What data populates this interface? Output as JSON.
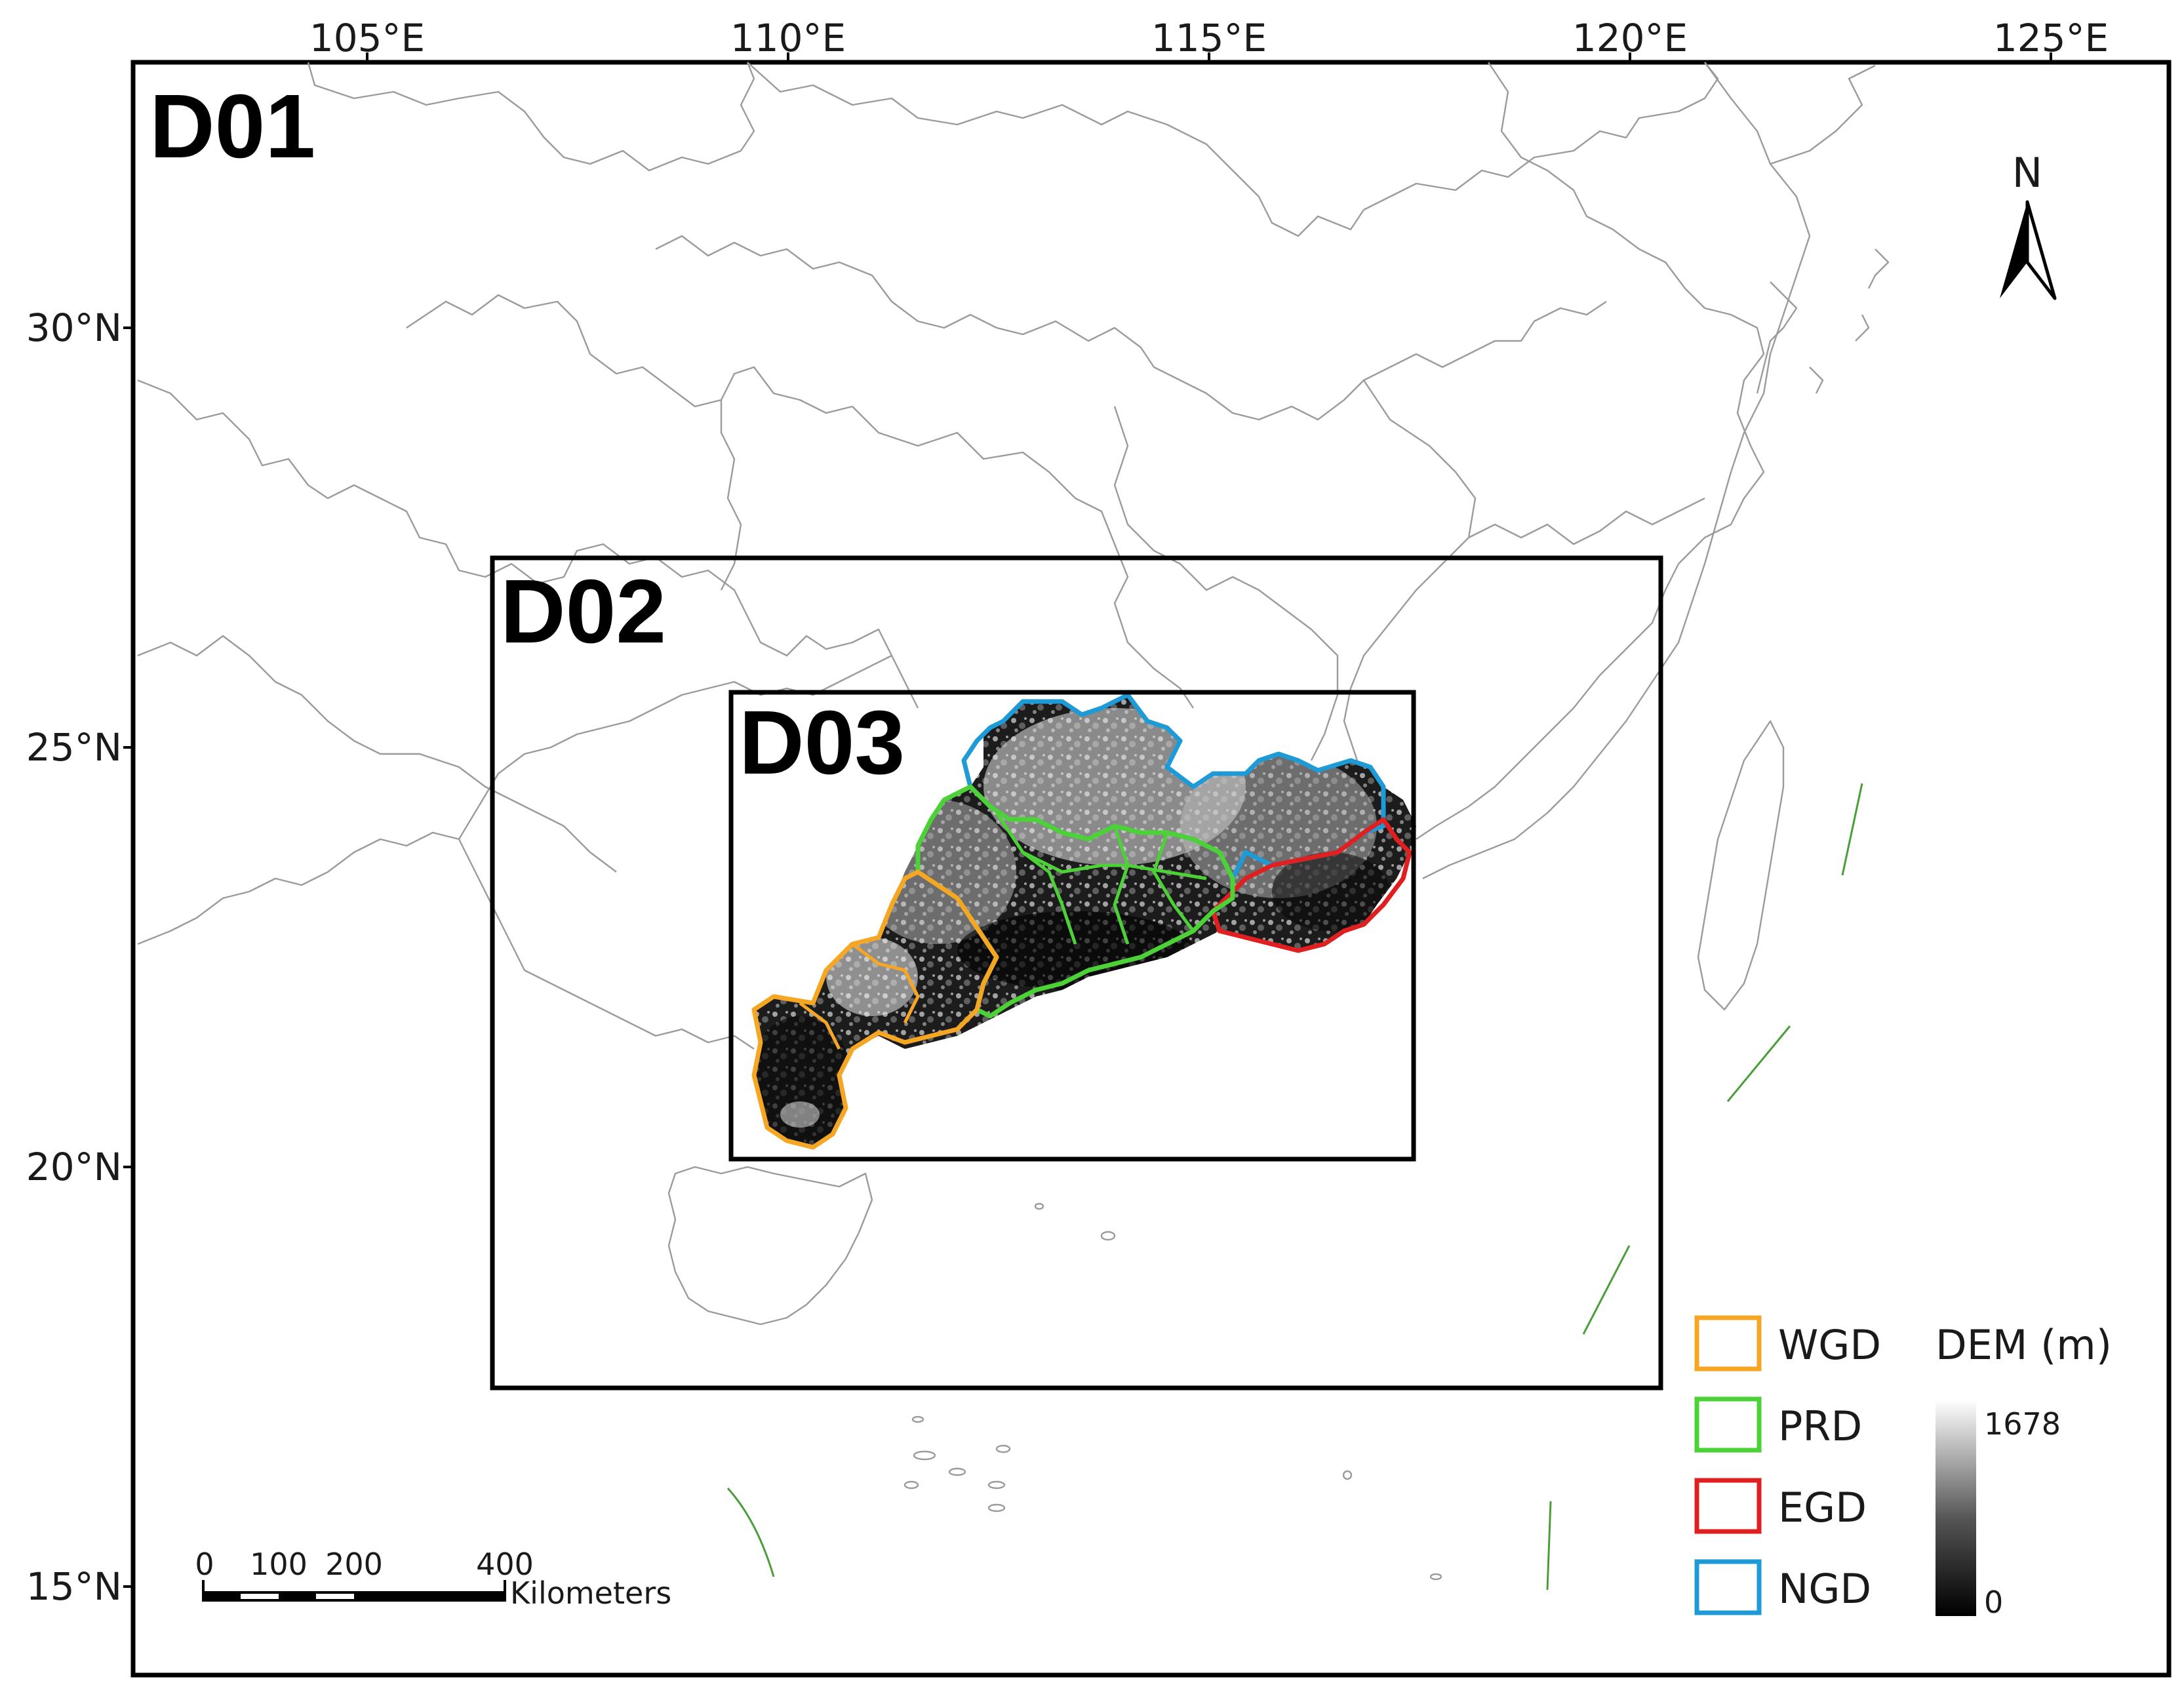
{
  "map": {
    "lon_ticks": [
      "105°E",
      "110°E",
      "115°E",
      "120°E",
      "125°E"
    ],
    "lat_ticks": [
      "30°N",
      "25°N",
      "20°N",
      "15°N"
    ],
    "domains": [
      {
        "label": "D01"
      },
      {
        "label": "D02"
      },
      {
        "label": "D03"
      }
    ],
    "north_arrow": {
      "label": "N"
    },
    "scale_bar": {
      "ticks": [
        "0",
        "100",
        "200",
        "400"
      ],
      "unit": "Kilometers"
    },
    "legend": {
      "regions": [
        {
          "label": "WGD",
          "color": "#f5a623"
        },
        {
          "label": "PRD",
          "color": "#4cd137"
        },
        {
          "label": "EGD",
          "color": "#e02020"
        },
        {
          "label": "NGD",
          "color": "#1e9bd7"
        }
      ],
      "dem": {
        "title": "DEM (m)",
        "max": "1678",
        "min": "0",
        "color_low": "#000000",
        "color_high": "#ffffff"
      }
    },
    "boundary_color": "#9b9b9b",
    "line_feature_color": "#4a9e3a"
  }
}
